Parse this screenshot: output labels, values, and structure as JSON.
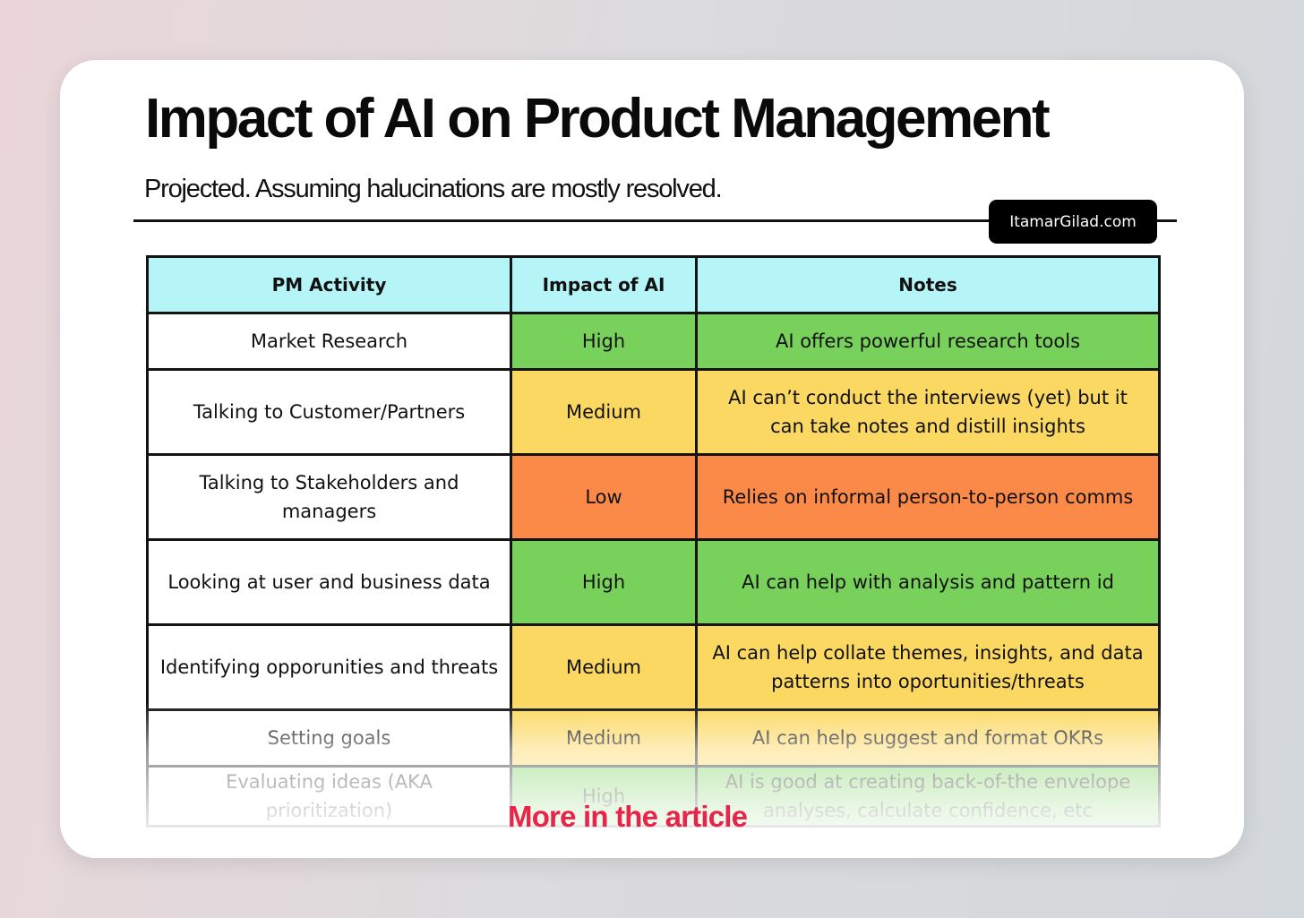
{
  "header": {
    "title": "Impact of AI on Product Management",
    "subtitle": "Projected. Assuming halucinations are mostly resolved.",
    "badge": "ItamarGilad.com"
  },
  "colors": {
    "header_bg": "#b5f5f8",
    "high": "#78d15a",
    "medium": "#fbd862",
    "low": "#fb8a48",
    "link_red": "#e8244a"
  },
  "table": {
    "columns": [
      "PM Activity",
      "Impact of AI",
      "Notes"
    ],
    "rows": [
      {
        "activity": "Market Research",
        "impact": "High",
        "notes": "AI offers powerful research tools"
      },
      {
        "activity": "Talking to Customer/Partners",
        "impact": "Medium",
        "notes": "AI can’t conduct the interviews (yet) but it can take notes and distill insights"
      },
      {
        "activity": "Talking to Stakeholders and managers",
        "impact": "Low",
        "notes": "Relies on informal person-to-person comms"
      },
      {
        "activity": "Looking at user and business data",
        "impact": "High",
        "notes": "AI can help with analysis and pattern id"
      },
      {
        "activity": "Identifying opporunities and threats",
        "impact": "Medium",
        "notes": "AI can help collate themes, insights, and data patterns into oportunities/threats"
      },
      {
        "activity": "Setting goals",
        "impact": "Medium",
        "notes": "AI can help suggest and format OKRs"
      },
      {
        "activity": "Evaluating ideas (AKA prioritization)",
        "impact": "High",
        "notes": "AI is good at creating back-of-the envelope analyses, calculate confidence, etc"
      }
    ]
  },
  "footer": {
    "more_link": "More in the article"
  }
}
